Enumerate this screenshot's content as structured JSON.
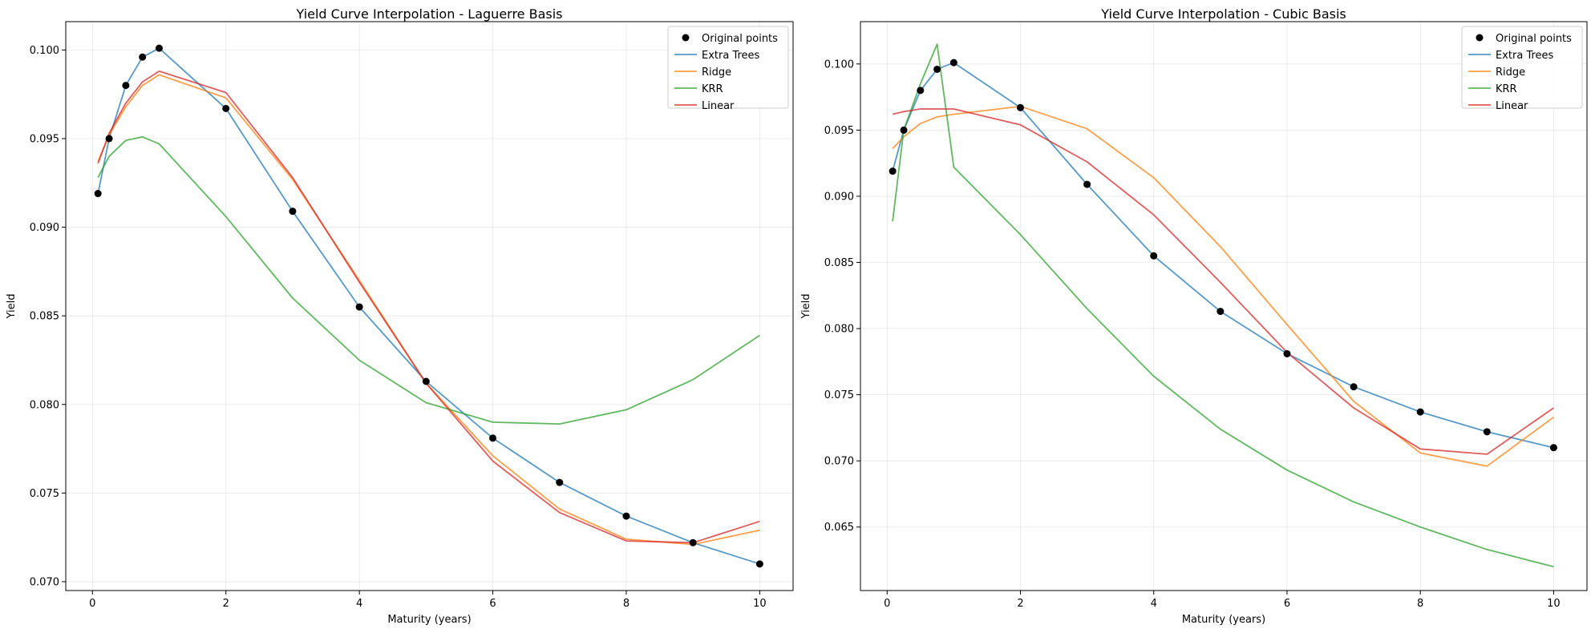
{
  "chart_data": [
    {
      "type": "line",
      "title": "Yield Curve Interpolation - Laguerre Basis",
      "xlabel": "Maturity (years)",
      "ylabel": "Yield",
      "xlim": [
        -0.4,
        10.5
      ],
      "ylim": [
        0.0695,
        0.1016
      ],
      "xticks": [
        "0",
        "2",
        "4",
        "6",
        "8",
        "10"
      ],
      "yticks": [
        "0.070",
        "0.075",
        "0.080",
        "0.085",
        "0.090",
        "0.095",
        "0.100"
      ],
      "grid": true,
      "legend_position": "top-right",
      "x": [
        0.083,
        0.25,
        0.5,
        0.75,
        1,
        2,
        3,
        4,
        5,
        6,
        7,
        8,
        9,
        10
      ],
      "points": {
        "name": "Original points",
        "color": "#000000",
        "values": [
          0.0919,
          0.095,
          0.098,
          0.0996,
          0.1001,
          0.0967,
          0.0909,
          0.0855,
          0.0813,
          0.0781,
          0.0756,
          0.0737,
          0.0722,
          0.071
        ]
      },
      "series": [
        {
          "name": "Extra Trees",
          "color": "#1f77b4",
          "values": [
            0.0919,
            0.095,
            0.098,
            0.0996,
            0.1001,
            0.0967,
            0.0909,
            0.0855,
            0.0813,
            0.0781,
            0.0756,
            0.0737,
            0.0722,
            0.071
          ]
        },
        {
          "name": "Ridge",
          "color": "#ff7f0e",
          "values": [
            0.0937,
            0.0952,
            0.0968,
            0.098,
            0.0986,
            0.0973,
            0.0927,
            0.087,
            0.0812,
            0.0771,
            0.0741,
            0.0724,
            0.0721,
            0.0729
          ]
        },
        {
          "name": "KRR",
          "color": "#2ca02c",
          "values": [
            0.0928,
            0.094,
            0.0949,
            0.0951,
            0.0947,
            0.0906,
            0.086,
            0.0825,
            0.0801,
            0.079,
            0.0789,
            0.0797,
            0.0814,
            0.0839
          ]
        },
        {
          "name": "Linear",
          "color": "#d62728",
          "values": [
            0.0936,
            0.0953,
            0.097,
            0.0982,
            0.0988,
            0.0976,
            0.0928,
            0.0869,
            0.0812,
            0.0768,
            0.0739,
            0.0723,
            0.0722,
            0.0734
          ]
        }
      ]
    },
    {
      "type": "line",
      "title": "Yield Curve Interpolation - Cubic Basis",
      "xlabel": "Maturity (years)",
      "ylabel": "Yield",
      "xlim": [
        -0.4,
        10.5
      ],
      "ylim": [
        0.0602,
        0.1032
      ],
      "xticks": [
        "0",
        "2",
        "4",
        "6",
        "8",
        "10"
      ],
      "yticks": [
        "0.065",
        "0.070",
        "0.075",
        "0.080",
        "0.085",
        "0.090",
        "0.095",
        "0.100"
      ],
      "grid": true,
      "legend_position": "top-right",
      "x": [
        0.083,
        0.25,
        0.5,
        0.75,
        1,
        2,
        3,
        4,
        5,
        6,
        7,
        8,
        9,
        10
      ],
      "points": {
        "name": "Original points",
        "color": "#000000",
        "values": [
          0.0919,
          0.095,
          0.098,
          0.0996,
          0.1001,
          0.0967,
          0.0909,
          0.0855,
          0.0813,
          0.0781,
          0.0756,
          0.0737,
          0.0722,
          0.071
        ]
      },
      "series": [
        {
          "name": "Extra Trees",
          "color": "#1f77b4",
          "values": [
            0.0919,
            0.095,
            0.098,
            0.0996,
            0.1001,
            0.0967,
            0.0909,
            0.0855,
            0.0813,
            0.0781,
            0.0756,
            0.0737,
            0.0722,
            0.071
          ]
        },
        {
          "name": "Ridge",
          "color": "#ff7f0e",
          "values": [
            0.0936,
            0.0945,
            0.0955,
            0.096,
            0.0962,
            0.0968,
            0.0951,
            0.0914,
            0.0862,
            0.0803,
            0.0745,
            0.0706,
            0.0696,
            0.0733
          ]
        },
        {
          "name": "KRR",
          "color": "#2ca02c",
          "values": [
            0.0881,
            0.095,
            0.0985,
            0.1015,
            0.0922,
            0.0871,
            0.0815,
            0.0764,
            0.0724,
            0.0693,
            0.0669,
            0.065,
            0.0633,
            0.062
          ]
        },
        {
          "name": "Linear",
          "color": "#d62728",
          "values": [
            0.0962,
            0.0964,
            0.0966,
            0.0966,
            0.0966,
            0.0954,
            0.0926,
            0.0886,
            0.0835,
            0.0782,
            0.074,
            0.0709,
            0.0705,
            0.074
          ]
        }
      ]
    }
  ]
}
